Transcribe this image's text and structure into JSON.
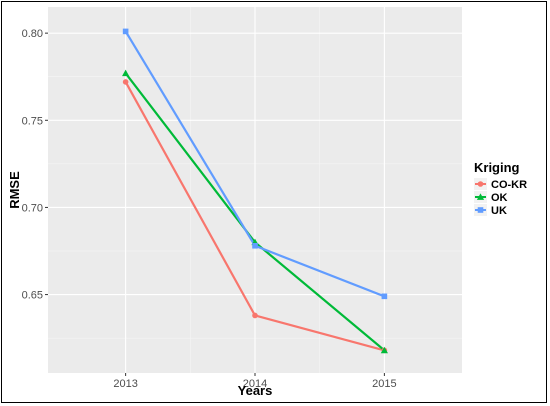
{
  "chart_data": {
    "type": "line",
    "xlabel": "Years",
    "ylabel": "RMSE",
    "x": [
      "2013",
      "2014",
      "2015"
    ],
    "ylim": [
      0.605,
      0.815
    ],
    "yticks": [
      "0.65",
      "0.70",
      "0.75",
      "0.80"
    ],
    "ytick_values": [
      0.65,
      0.7,
      0.75,
      0.8
    ],
    "grid": true,
    "legend": {
      "title": "Kriging",
      "placement": "right"
    },
    "series": [
      {
        "name": "CO-KR",
        "color": "#F8766D",
        "marker": "circle",
        "values": [
          0.772,
          0.638,
          0.618
        ]
      },
      {
        "name": "OK",
        "color": "#00BA38",
        "marker": "triangle",
        "values": [
          0.777,
          0.68,
          0.618
        ]
      },
      {
        "name": "UK",
        "color": "#619CFF",
        "marker": "square",
        "values": [
          0.801,
          0.678,
          0.649
        ]
      }
    ]
  }
}
